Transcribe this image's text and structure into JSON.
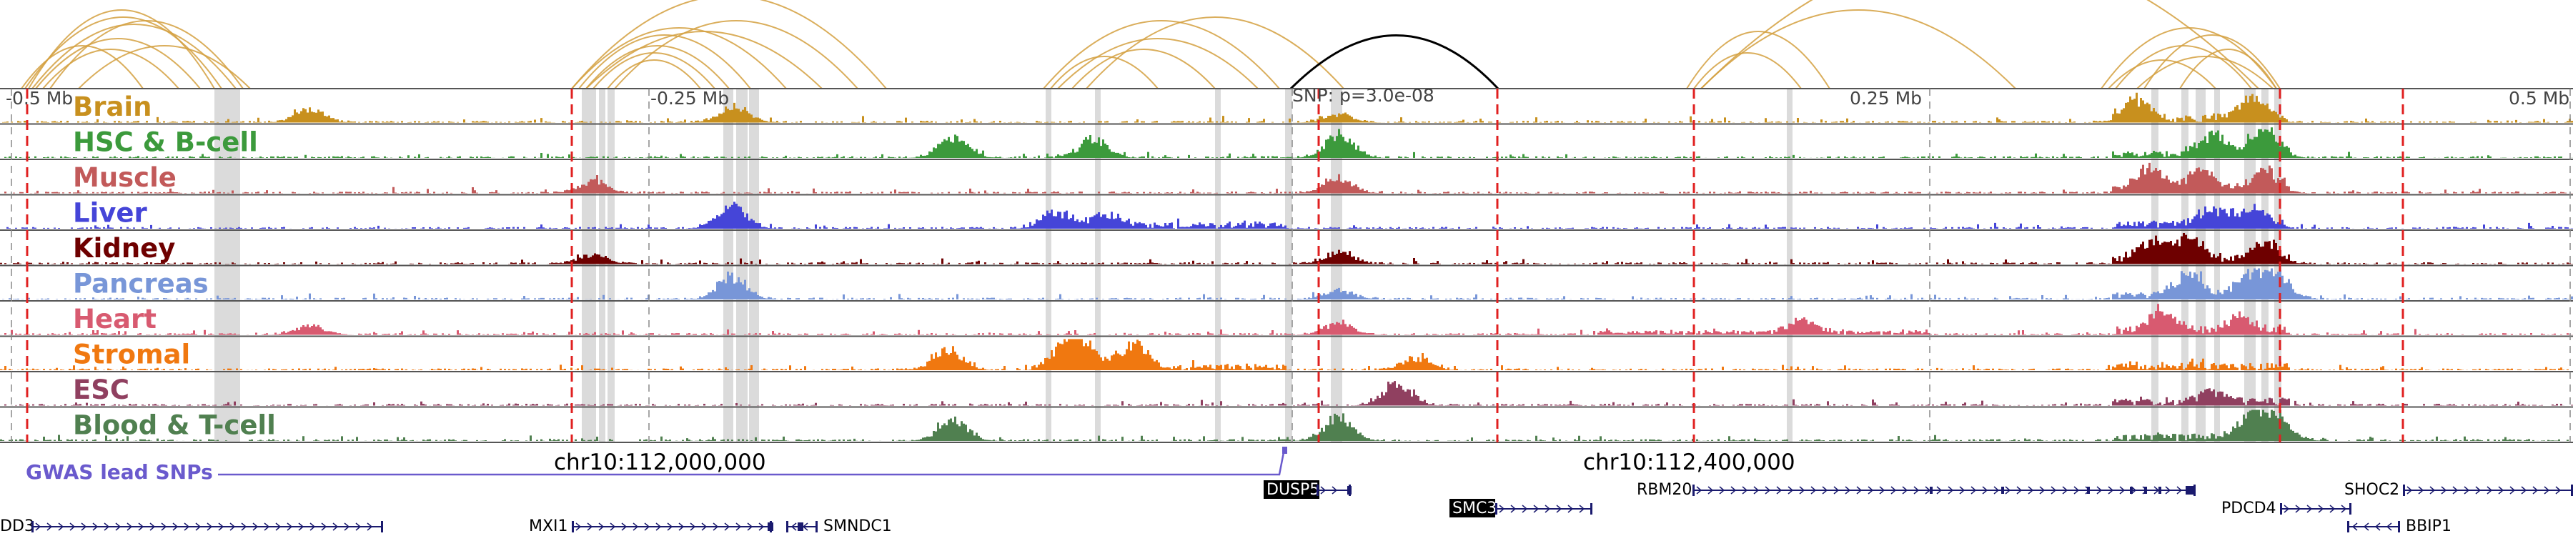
{
  "scale_marks": [
    "-0.5 Mb",
    "-0.25 Mb",
    "SNP: p=3.0e-08",
    "0.25 Mb",
    "0.5 Mb"
  ],
  "tracks": [
    {
      "label": "Brain",
      "color": "#c8901e",
      "seed": 11,
      "peaks": [
        [
          0.12,
          0.6
        ],
        [
          0.285,
          0.7
        ],
        [
          0.52,
          0.35
        ],
        [
          0.83,
          0.8
        ],
        [
          0.875,
          0.9
        ]
      ]
    },
    {
      "label": "HSC & B-cell",
      "color": "#3c9a3c",
      "seed": 23,
      "peaks": [
        [
          0.37,
          0.9
        ],
        [
          0.425,
          0.8
        ],
        [
          0.52,
          1.0
        ],
        [
          0.86,
          0.8
        ],
        [
          0.88,
          1.0
        ]
      ]
    },
    {
      "label": "Muscle",
      "color": "#c25a5a",
      "seed": 37,
      "peaks": [
        [
          0.23,
          0.5
        ],
        [
          0.52,
          0.6
        ],
        [
          0.835,
          0.9
        ],
        [
          0.855,
          0.8
        ],
        [
          0.88,
          0.8
        ]
      ]
    },
    {
      "label": "Liver",
      "color": "#4545d8",
      "seed": 41,
      "peaks": [
        [
          0.284,
          1.0
        ],
        [
          0.41,
          0.6
        ],
        [
          0.43,
          0.5
        ],
        [
          0.86,
          0.7
        ],
        [
          0.875,
          0.6
        ]
      ]
    },
    {
      "label": "Kidney",
      "color": "#6e0000",
      "seed": 53,
      "peaks": [
        [
          0.23,
          0.4
        ],
        [
          0.52,
          0.5
        ],
        [
          0.835,
          0.8
        ],
        [
          0.85,
          1.0
        ],
        [
          0.88,
          0.7
        ]
      ]
    },
    {
      "label": "Pancreas",
      "color": "#7896d8",
      "seed": 67,
      "peaks": [
        [
          0.284,
          1.0
        ],
        [
          0.52,
          0.4
        ],
        [
          0.85,
          0.9
        ],
        [
          0.875,
          1.0
        ],
        [
          0.885,
          0.8
        ]
      ]
    },
    {
      "label": "Heart",
      "color": "#d85a70",
      "seed": 71,
      "peaks": [
        [
          0.12,
          0.4
        ],
        [
          0.52,
          0.5
        ],
        [
          0.7,
          0.5
        ],
        [
          0.84,
          0.9
        ],
        [
          0.87,
          0.6
        ]
      ]
    },
    {
      "label": "Stromal",
      "color": "#f07810",
      "seed": 83,
      "peaks": [
        [
          0.368,
          0.9
        ],
        [
          0.415,
          1.0
        ],
        [
          0.44,
          1.0
        ],
        [
          0.42,
          0.8
        ],
        [
          0.55,
          0.5
        ]
      ]
    },
    {
      "label": "ESC",
      "color": "#904060",
      "seed": 97,
      "peaks": [
        [
          0.543,
          0.9
        ],
        [
          0.86,
          0.4
        ]
      ]
    },
    {
      "label": "Blood & T-cell",
      "color": "#508050",
      "seed": 101,
      "peaks": [
        [
          0.37,
          0.9
        ],
        [
          0.52,
          1.0
        ],
        [
          0.875,
          1.0
        ],
        [
          0.885,
          0.9
        ]
      ]
    }
  ],
  "coordinates": [
    "chr10:112,000,000",
    "chr10:112,400,000"
  ],
  "gwas_label": "GWAS lead SNPs",
  "genes": [
    {
      "name": "DUSP5",
      "highlight": true
    },
    {
      "name": "SMC3",
      "highlight": true
    },
    {
      "name": "RBM20",
      "highlight": false
    },
    {
      "name": "SHOC2",
      "highlight": false
    },
    {
      "name": "PDCD4",
      "highlight": false
    },
    {
      "name": "BBIP1",
      "highlight": false
    },
    {
      "name": "MXI1",
      "highlight": false
    },
    {
      "name": "SMNDC1",
      "highlight": false
    },
    {
      "name": "DD3",
      "highlight": false
    }
  ],
  "colors": {
    "arc": "#d4a040",
    "snp_arc": "#000000",
    "red_line": "#e02020",
    "gwas": "#6a5acd",
    "gene": "#1a1a6e",
    "highlight_box": "#c8c8c8"
  }
}
